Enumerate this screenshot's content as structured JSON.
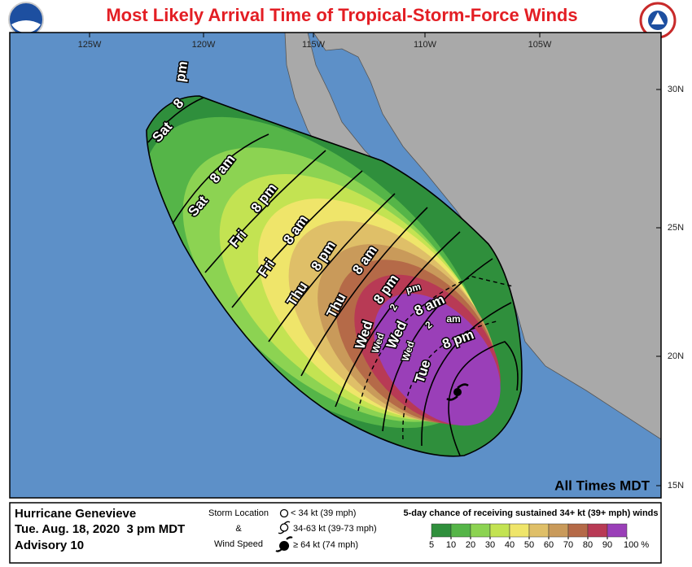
{
  "header": {
    "title": "Most Likely Arrival Time of Tropical-Storm-Force Winds"
  },
  "map": {
    "lon_labels": [
      "125W",
      "120W",
      "115W",
      "110W",
      "105W"
    ],
    "lat_labels": [
      "30N",
      "25N",
      "20N",
      "15N"
    ],
    "isochrone_labels": [
      "pm",
      "Sat",
      "8",
      "Sat",
      "8 am",
      "Fri",
      "8 pm",
      "Fri",
      "8 am",
      "Thu",
      "8 pm",
      "Thu",
      "8 am",
      "Wed",
      "8 pm",
      "Wed",
      "2",
      "pm",
      "Wed",
      "8 am",
      "Wed",
      "2",
      "am",
      "Tue",
      "8 pm"
    ],
    "note": "All Times MDT"
  },
  "info": {
    "storm": "Hurricane Genevieve",
    "date": "Tue. Aug. 18, 2020  3 pm MDT",
    "advisory": "Advisory 10"
  },
  "symbols": {
    "title_1": "Storm Location",
    "title_2": "&",
    "title_3": "Wind Speed",
    "items": [
      "< 34 kt (39 mph)",
      "34-63 kt (39-73 mph)",
      "≥ 64 kt (74 mph)"
    ]
  },
  "legend": {
    "title": "5-day chance of receiving sustained 34+ kt (39+ mph) winds",
    "scale": [
      5,
      10,
      20,
      30,
      40,
      50,
      60,
      70,
      80,
      90,
      {
        "value": 100,
        "label": "100 %"
      }
    ],
    "colors": [
      "#2f8f3c",
      "#55b548",
      "#8cd352",
      "#c3e352",
      "#efe56a",
      "#dfbf68",
      "#c99a5a",
      "#b56a48",
      "#b83a55",
      "#9a3fb8"
    ]
  }
}
